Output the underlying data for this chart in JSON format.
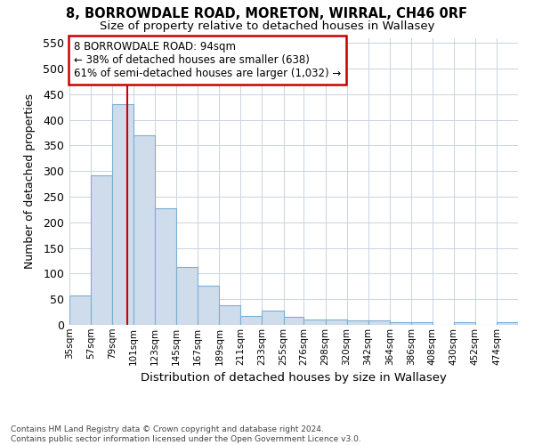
{
  "title1": "8, BORROWDALE ROAD, MORETON, WIRRAL, CH46 0RF",
  "title2": "Size of property relative to detached houses in Wallasey",
  "xlabel": "Distribution of detached houses by size in Wallasey",
  "ylabel": "Number of detached properties",
  "footer1": "Contains HM Land Registry data © Crown copyright and database right 2024.",
  "footer2": "Contains public sector information licensed under the Open Government Licence v3.0.",
  "bar_color": "#cfdcec",
  "bar_edge_color": "#7aafd4",
  "grid_color": "#c8d4e0",
  "background_color": "#ffffff",
  "ref_line_color": "#cc0000",
  "ref_line_x": 94,
  "annotation_line1": "8 BORROWDALE ROAD: 94sqm",
  "annotation_line2": "← 38% of detached houses are smaller (638)",
  "annotation_line3": "61% of semi-detached houses are larger (1,032) →",
  "categories": [
    "35sqm",
    "57sqm",
    "79sqm",
    "101sqm",
    "123sqm",
    "145sqm",
    "167sqm",
    "189sqm",
    "211sqm",
    "233sqm",
    "255sqm",
    "276sqm",
    "298sqm",
    "320sqm",
    "342sqm",
    "364sqm",
    "386sqm",
    "408sqm",
    "430sqm",
    "452sqm",
    "474sqm"
  ],
  "bin_edges": [
    35,
    57,
    79,
    101,
    123,
    145,
    167,
    189,
    211,
    233,
    255,
    276,
    298,
    320,
    342,
    364,
    386,
    408,
    430,
    452,
    474,
    496
  ],
  "values": [
    57,
    292,
    430,
    369,
    227,
    113,
    76,
    38,
    17,
    27,
    15,
    10,
    10,
    8,
    8,
    5,
    5,
    0,
    5,
    0,
    5
  ],
  "ylim": [
    0,
    560
  ],
  "yticks": [
    0,
    50,
    100,
    150,
    200,
    250,
    300,
    350,
    400,
    450,
    500,
    550
  ],
  "figsize": [
    6.0,
    5.0
  ],
  "dpi": 100
}
